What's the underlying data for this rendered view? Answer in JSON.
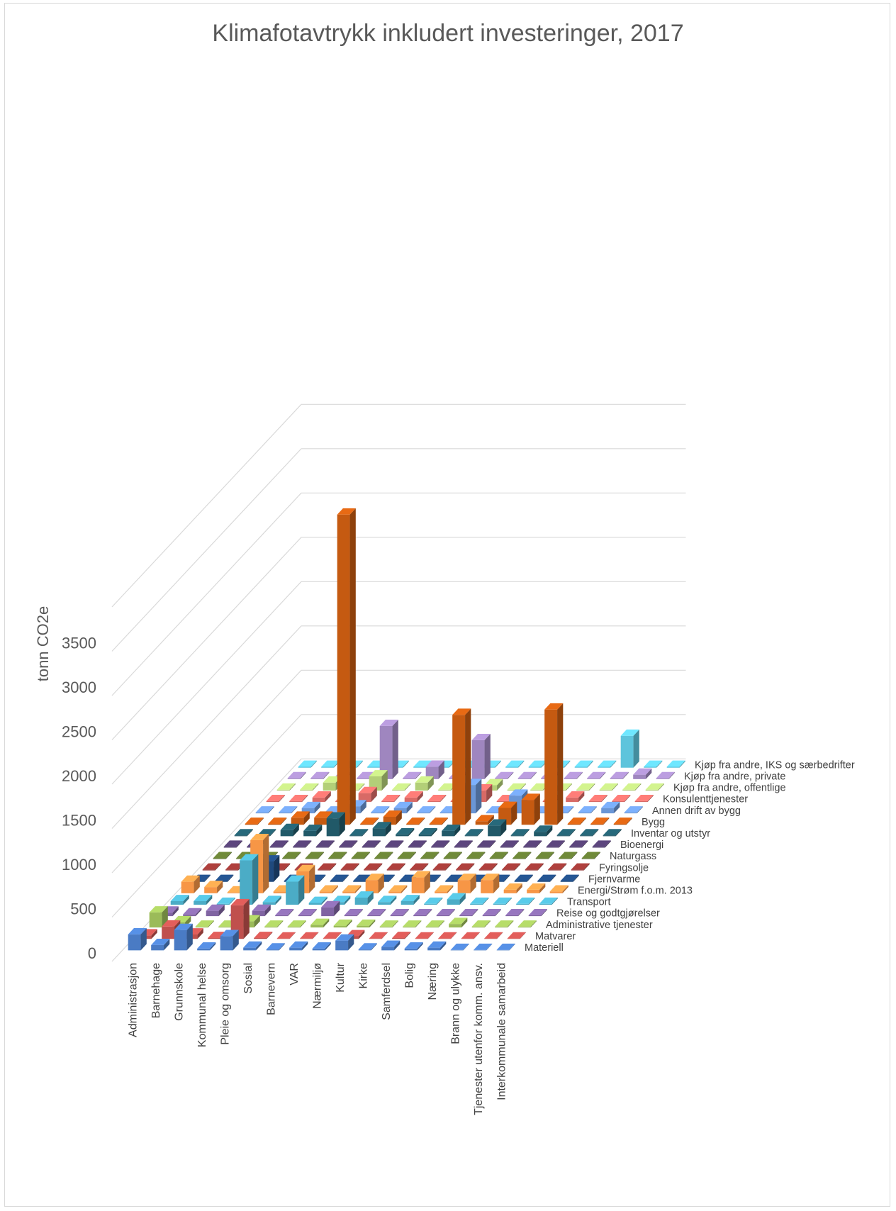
{
  "chart_data": {
    "type": "bar",
    "variant": "3d-column",
    "title": "Klimafotavtrykk inkludert investeringer, 2017",
    "ylabel": "tonn CO2e",
    "ylim": [
      0,
      4000
    ],
    "yticks": [
      0,
      500,
      1000,
      1500,
      2000,
      2500,
      3000,
      3500
    ],
    "grid": true,
    "legend": "none",
    "categories": [
      "Administrasjon",
      "Barnehage",
      "Grunnskole",
      "Kommunal helse",
      "Pleie og omsorg",
      "Sosial",
      "Barnevern",
      "VAR",
      "Nærmiljø",
      "Kultur",
      "Kirke",
      "Samferdsel",
      "Bolig",
      "Næring",
      "Brann og ulykke",
      "Tjenester utenfor komm. ansv.",
      "Interkommunale samarbeid"
    ],
    "series": [
      {
        "name": "Materiell",
        "color": "#4a7bc4",
        "values": [
          180,
          60,
          230,
          20,
          160,
          30,
          10,
          30,
          20,
          110,
          10,
          40,
          20,
          30,
          5,
          5,
          5
        ]
      },
      {
        "name": "Matvarer",
        "color": "#c0504d",
        "values": [
          40,
          140,
          50,
          10,
          380,
          10,
          5,
          5,
          5,
          30,
          5,
          10,
          5,
          5,
          5,
          5,
          5
        ]
      },
      {
        "name": "Administrative tjenester",
        "color": "#9bbb59",
        "values": [
          170,
          60,
          10,
          10,
          70,
          10,
          10,
          30,
          20,
          20,
          10,
          10,
          10,
          40,
          10,
          10,
          10
        ]
      },
      {
        "name": "Reise og godtgjørelser",
        "color": "#8064a2",
        "values": [
          40,
          20,
          60,
          10,
          60,
          10,
          10,
          100,
          10,
          10,
          10,
          10,
          10,
          10,
          10,
          10,
          10
        ]
      },
      {
        "name": "Transport",
        "color": "#4bacc6",
        "values": [
          40,
          40,
          10,
          500,
          30,
          260,
          20,
          30,
          80,
          30,
          40,
          10,
          60,
          10,
          10,
          10,
          10
        ]
      },
      {
        "name": "Energi/Strøm f.o.m. 2013",
        "color": "#f79646",
        "values": [
          130,
          70,
          10,
          600,
          20,
          250,
          20,
          20,
          150,
          20,
          180,
          20,
          150,
          150,
          40,
          40,
          20
        ]
      },
      {
        "name": "Fjernvarme",
        "color": "#1f497d",
        "values": [
          10,
          10,
          10,
          230,
          10,
          10,
          10,
          10,
          10,
          10,
          10,
          10,
          10,
          10,
          10,
          10,
          10
        ]
      },
      {
        "name": "Fyringsolje",
        "color": "#943634",
        "values": [
          10,
          10,
          10,
          10,
          10,
          10,
          10,
          10,
          10,
          10,
          10,
          10,
          10,
          10,
          10,
          10,
          10
        ]
      },
      {
        "name": "Naturgass",
        "color": "#5f7530",
        "values": [
          10,
          10,
          10,
          10,
          10,
          10,
          10,
          10,
          10,
          10,
          10,
          10,
          10,
          10,
          10,
          10,
          10
        ]
      },
      {
        "name": "Bioenergi",
        "color": "#4f3b6b",
        "values": [
          10,
          10,
          10,
          10,
          10,
          10,
          10,
          10,
          10,
          10,
          10,
          10,
          10,
          10,
          10,
          10,
          10
        ]
      },
      {
        "name": "Inventar og utstyr",
        "color": "#215968",
        "values": [
          10,
          10,
          70,
          60,
          200,
          10,
          90,
          20,
          20,
          60,
          10,
          120,
          10,
          50,
          10,
          10,
          10
        ]
      },
      {
        "name": "Bygg",
        "color": "#c55a11",
        "values": [
          10,
          10,
          80,
          80,
          3500,
          10,
          90,
          10,
          10,
          1240,
          40,
          190,
          280,
          1300,
          10,
          10,
          10
        ]
      },
      {
        "name": "Annen drift av bygg",
        "color": "#6a96d6",
        "values": [
          10,
          10,
          60,
          10,
          80,
          10,
          60,
          10,
          10,
          320,
          10,
          200,
          10,
          10,
          10,
          60,
          10
        ]
      },
      {
        "name": "Konsulenttjenester",
        "color": "#d86a66",
        "values": [
          10,
          10,
          50,
          10,
          100,
          10,
          50,
          10,
          10,
          130,
          10,
          10,
          10,
          50,
          10,
          10,
          10
        ]
      },
      {
        "name": "Kjøp fra andre, offentlige",
        "color": "#b3cf78",
        "values": [
          10,
          10,
          90,
          10,
          160,
          10,
          90,
          10,
          10,
          60,
          10,
          10,
          10,
          10,
          10,
          10,
          10
        ]
      },
      {
        "name": "Kjøp fra andre, private",
        "color": "#9f86bf",
        "values": [
          10,
          10,
          10,
          10,
          600,
          10,
          140,
          10,
          440,
          10,
          10,
          10,
          10,
          10,
          10,
          50,
          10
        ]
      },
      {
        "name": "Kjøp fra andre, IKS og særbedrifter",
        "color": "#5ec4dc",
        "values": [
          10,
          10,
          10,
          10,
          10,
          10,
          10,
          10,
          10,
          10,
          10,
          10,
          10,
          10,
          360,
          10,
          10
        ]
      }
    ]
  }
}
